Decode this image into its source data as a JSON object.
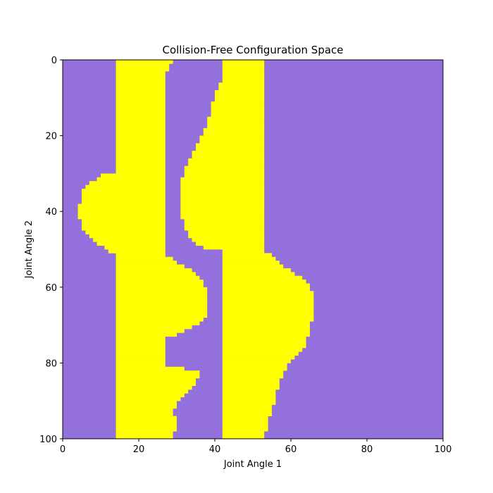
{
  "chart_data": {
    "type": "heatmap",
    "title": "Collision-Free Configuration Space",
    "xlabel": "Joint Angle 1",
    "ylabel": "Joint Angle 2",
    "xlim": [
      0,
      100
    ],
    "ylim": [
      100,
      0
    ],
    "y_axis_inverted": true,
    "xticks": [
      0,
      20,
      40,
      60,
      80,
      100
    ],
    "yticks": [
      0,
      20,
      40,
      60,
      80,
      100
    ],
    "grid": false,
    "colors": {
      "free": "#9370DB",
      "collision": "#FFFF00"
    },
    "collision_band_knots": {
      "band_1_left_edge": [
        [
          0,
          14
        ],
        [
          29,
          14
        ],
        [
          30,
          10
        ],
        [
          32,
          7
        ],
        [
          34,
          5
        ],
        [
          40,
          4
        ],
        [
          44,
          5
        ],
        [
          46,
          7
        ],
        [
          48,
          9
        ],
        [
          50,
          12
        ],
        [
          51,
          14
        ],
        [
          100,
          14
        ]
      ],
      "band_1_right_edge": [
        [
          0,
          29
        ],
        [
          1,
          28
        ],
        [
          4,
          27
        ],
        [
          50,
          27
        ],
        [
          51,
          27
        ],
        [
          54,
          32
        ],
        [
          56,
          35
        ],
        [
          58,
          37
        ],
        [
          62,
          38
        ],
        [
          66,
          38
        ],
        [
          68,
          37
        ],
        [
          70,
          34
        ],
        [
          72,
          30
        ],
        [
          73,
          27
        ],
        [
          80,
          27
        ],
        [
          82,
          36
        ],
        [
          85,
          35
        ],
        [
          87,
          33
        ],
        [
          90,
          30
        ],
        [
          92,
          29
        ],
        [
          95,
          30
        ],
        [
          100,
          29
        ]
      ],
      "band_2_left_edge": [
        [
          0,
          42
        ],
        [
          4,
          42
        ],
        [
          8,
          40
        ],
        [
          12,
          39
        ],
        [
          16,
          38
        ],
        [
          20,
          36
        ],
        [
          24,
          34
        ],
        [
          28,
          32
        ],
        [
          32,
          31
        ],
        [
          40,
          31
        ],
        [
          44,
          32
        ],
        [
          46,
          33
        ],
        [
          48,
          35
        ],
        [
          49,
          37
        ],
        [
          50,
          42
        ],
        [
          100,
          42
        ]
      ],
      "band_2_right_edge": [
        [
          0,
          53
        ],
        [
          50,
          53
        ],
        [
          52,
          56
        ],
        [
          54,
          58
        ],
        [
          56,
          61
        ],
        [
          58,
          64
        ],
        [
          62,
          66
        ],
        [
          66,
          66
        ],
        [
          70,
          65
        ],
        [
          74,
          64
        ],
        [
          76,
          63
        ],
        [
          78,
          61
        ],
        [
          80,
          59
        ],
        [
          84,
          57
        ],
        [
          88,
          56
        ],
        [
          92,
          55
        ],
        [
          95,
          54
        ],
        [
          100,
          53
        ]
      ]
    }
  }
}
